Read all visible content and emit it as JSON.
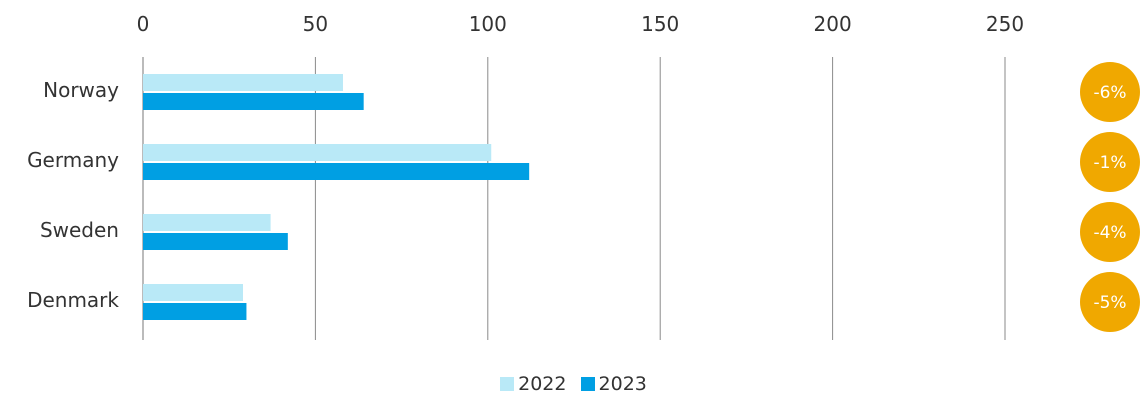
{
  "chart_data": {
    "type": "bar",
    "orientation": "horizontal",
    "categories": [
      "Norway",
      "Germany",
      "Sweden",
      "Denmark"
    ],
    "series": [
      {
        "name": "2022",
        "values": [
          58,
          101,
          37,
          29
        ],
        "color": "#b9e9f7"
      },
      {
        "name": "2023",
        "values": [
          64,
          112,
          42,
          30
        ],
        "color": "#009fe3"
      }
    ],
    "xlim": [
      0,
      250
    ],
    "x_ticks": [
      "0",
      "50",
      "100",
      "150",
      "200",
      "250"
    ],
    "x_tick_values": [
      0,
      50,
      100,
      150,
      200,
      250
    ],
    "grid": "vertical",
    "legend_position": "bottom-center",
    "annotations": [
      "-6%",
      "-1%",
      "-4%",
      "-5%"
    ],
    "annotation_color": "#f0a800"
  }
}
